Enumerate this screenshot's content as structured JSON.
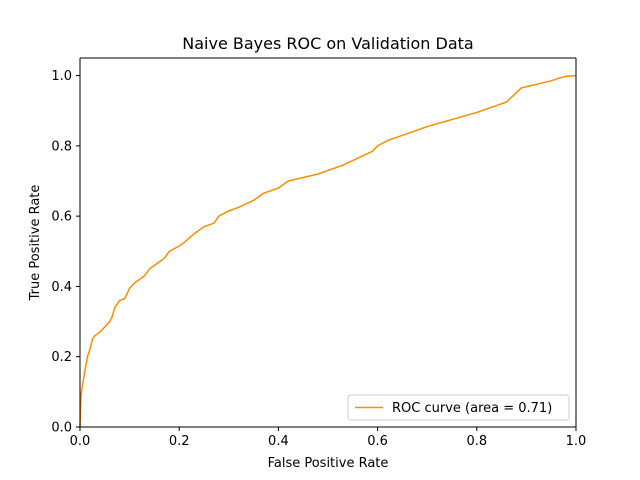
{
  "chart_data": {
    "type": "line",
    "title": "Naive Bayes ROC on Validation Data",
    "xlabel": "False Positive Rate",
    "ylabel": "True Positive Rate",
    "xlim": [
      0.0,
      1.0
    ],
    "ylim": [
      0.0,
      1.05
    ],
    "x_ticks": [
      "0.0",
      "0.2",
      "0.4",
      "0.6",
      "0.8",
      "1.0"
    ],
    "y_ticks": [
      "0.0",
      "0.2",
      "0.4",
      "0.6",
      "0.8",
      "1.0"
    ],
    "grid": false,
    "legend_position": "lower right",
    "series": [
      {
        "name": "ROC curve (area = 0.71)",
        "color": "#ff8c00",
        "x": [
          0.0,
          0.002,
          0.005,
          0.01,
          0.015,
          0.02,
          0.025,
          0.03,
          0.04,
          0.05,
          0.06,
          0.065,
          0.07,
          0.08,
          0.09,
          0.1,
          0.11,
          0.13,
          0.14,
          0.15,
          0.17,
          0.18,
          0.2,
          0.21,
          0.23,
          0.25,
          0.27,
          0.28,
          0.3,
          0.32,
          0.35,
          0.37,
          0.4,
          0.42,
          0.45,
          0.48,
          0.5,
          0.53,
          0.56,
          0.59,
          0.6,
          0.62,
          0.65,
          0.68,
          0.7,
          0.75,
          0.8,
          0.86,
          0.89,
          0.92,
          0.95,
          0.96,
          0.98,
          1.0
        ],
        "y": [
          0.0,
          0.09,
          0.12,
          0.16,
          0.2,
          0.22,
          0.25,
          0.26,
          0.27,
          0.285,
          0.3,
          0.315,
          0.34,
          0.36,
          0.365,
          0.395,
          0.41,
          0.43,
          0.45,
          0.46,
          0.48,
          0.5,
          0.515,
          0.525,
          0.55,
          0.57,
          0.58,
          0.6,
          0.615,
          0.625,
          0.645,
          0.665,
          0.68,
          0.7,
          0.71,
          0.72,
          0.73,
          0.745,
          0.765,
          0.785,
          0.8,
          0.815,
          0.83,
          0.845,
          0.855,
          0.875,
          0.895,
          0.925,
          0.965,
          0.975,
          0.985,
          0.99,
          0.998,
          1.0
        ]
      }
    ]
  }
}
